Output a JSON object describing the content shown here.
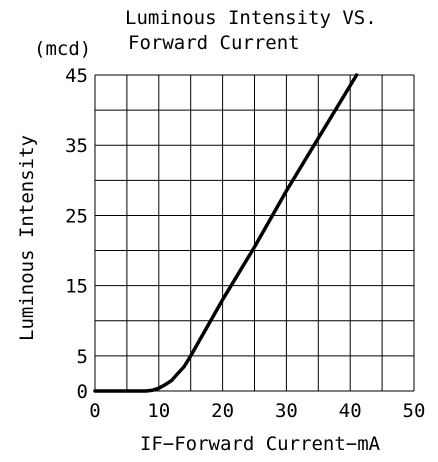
{
  "chart_data": {
    "type": "line",
    "title_line1": "Luminous Intensity VS.",
    "title_line2": "Forward Current",
    "y_unit": "(mcd)",
    "xlabel": "IF−Forward Current−mA",
    "ylabel": "Luminous Intensity",
    "xlim": [
      0,
      50
    ],
    "ylim": [
      0,
      45
    ],
    "x_ticks": [
      "0",
      "10",
      "20",
      "30",
      "40",
      "50"
    ],
    "y_ticks": [
      "0",
      "5",
      "15",
      "25",
      "35",
      "45"
    ],
    "grid": true,
    "series": [
      {
        "x": [
          0,
          8,
          9,
          10,
          11,
          12,
          13,
          14,
          15,
          20,
          25,
          30,
          35,
          41
        ],
        "y": [
          0,
          0,
          0.1,
          0.4,
          0.9,
          1.5,
          2.5,
          3.5,
          5,
          13,
          20.5,
          28.5,
          36,
          45
        ]
      }
    ]
  }
}
